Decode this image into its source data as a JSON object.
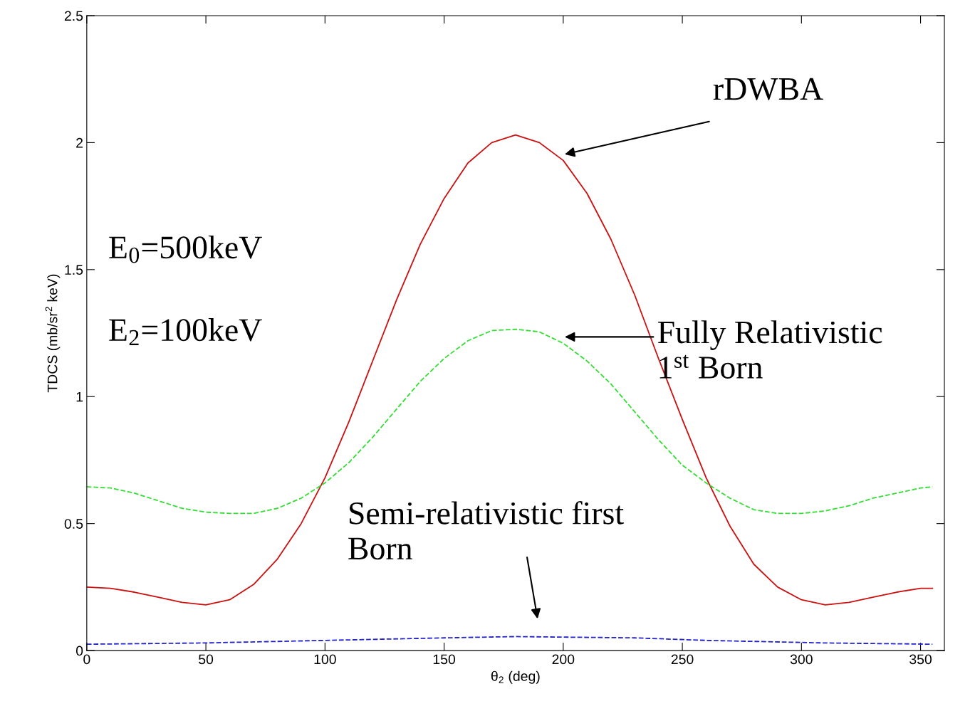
{
  "chart_data": {
    "type": "line",
    "xlabel": "θ$_{2}$ (deg)",
    "ylabel": "TDCS (mb/sr$^{2}$ keV)",
    "xlim": [
      0,
      360
    ],
    "xticks": [
      0,
      50,
      100,
      150,
      200,
      250,
      300,
      350
    ],
    "ylim": [
      0,
      2.5
    ],
    "yticks": [
      0,
      0.5,
      1,
      1.5,
      2,
      2.5
    ],
    "grid": false,
    "legend": false,
    "series": [
      {
        "color": "#cc1111",
        "line_style": "solid",
        "x": [
          0,
          10,
          20,
          30,
          40,
          50,
          60,
          70,
          80,
          90,
          100,
          110,
          120,
          130,
          140,
          150,
          160,
          170,
          180,
          190,
          200,
          210,
          220,
          230,
          240,
          250,
          260,
          270,
          280,
          290,
          300,
          310,
          320,
          330,
          340,
          350,
          355
        ],
        "values": [
          0.25,
          0.245,
          0.23,
          0.21,
          0.19,
          0.18,
          0.2,
          0.26,
          0.36,
          0.5,
          0.68,
          0.9,
          1.14,
          1.38,
          1.6,
          1.78,
          1.92,
          2.0,
          2.03,
          2.0,
          1.93,
          1.8,
          1.62,
          1.4,
          1.15,
          0.91,
          0.68,
          0.49,
          0.34,
          0.25,
          0.2,
          0.18,
          0.19,
          0.21,
          0.23,
          0.245,
          0.245
        ]
      },
      {
        "color": "#33dd33",
        "line_style": "dashed",
        "x": [
          0,
          10,
          20,
          30,
          40,
          50,
          60,
          70,
          80,
          90,
          100,
          110,
          120,
          130,
          140,
          150,
          160,
          170,
          180,
          190,
          200,
          210,
          220,
          230,
          240,
          250,
          260,
          270,
          280,
          290,
          300,
          310,
          320,
          330,
          340,
          350,
          355
        ],
        "values": [
          0.645,
          0.64,
          0.62,
          0.59,
          0.56,
          0.545,
          0.54,
          0.54,
          0.56,
          0.6,
          0.66,
          0.74,
          0.84,
          0.95,
          1.06,
          1.15,
          1.22,
          1.26,
          1.265,
          1.255,
          1.21,
          1.14,
          1.05,
          0.94,
          0.83,
          0.73,
          0.66,
          0.6,
          0.555,
          0.54,
          0.54,
          0.55,
          0.57,
          0.6,
          0.62,
          0.64,
          0.645
        ]
      },
      {
        "color": "#2222cc",
        "line_style": "dashed",
        "x": [
          0,
          50,
          100,
          150,
          180,
          230,
          260,
          310,
          355
        ],
        "values": [
          0.025,
          0.03,
          0.04,
          0.05,
          0.055,
          0.05,
          0.04,
          0.03,
          0.025
        ]
      }
    ],
    "annotations": [
      "rDWBA",
      "Fully Relativistic\n1$^{st}$ Born",
      "Semi-relativistic first\nBorn",
      "E$_{0}$=500keV",
      "E$_{2}$=100keV"
    ]
  }
}
